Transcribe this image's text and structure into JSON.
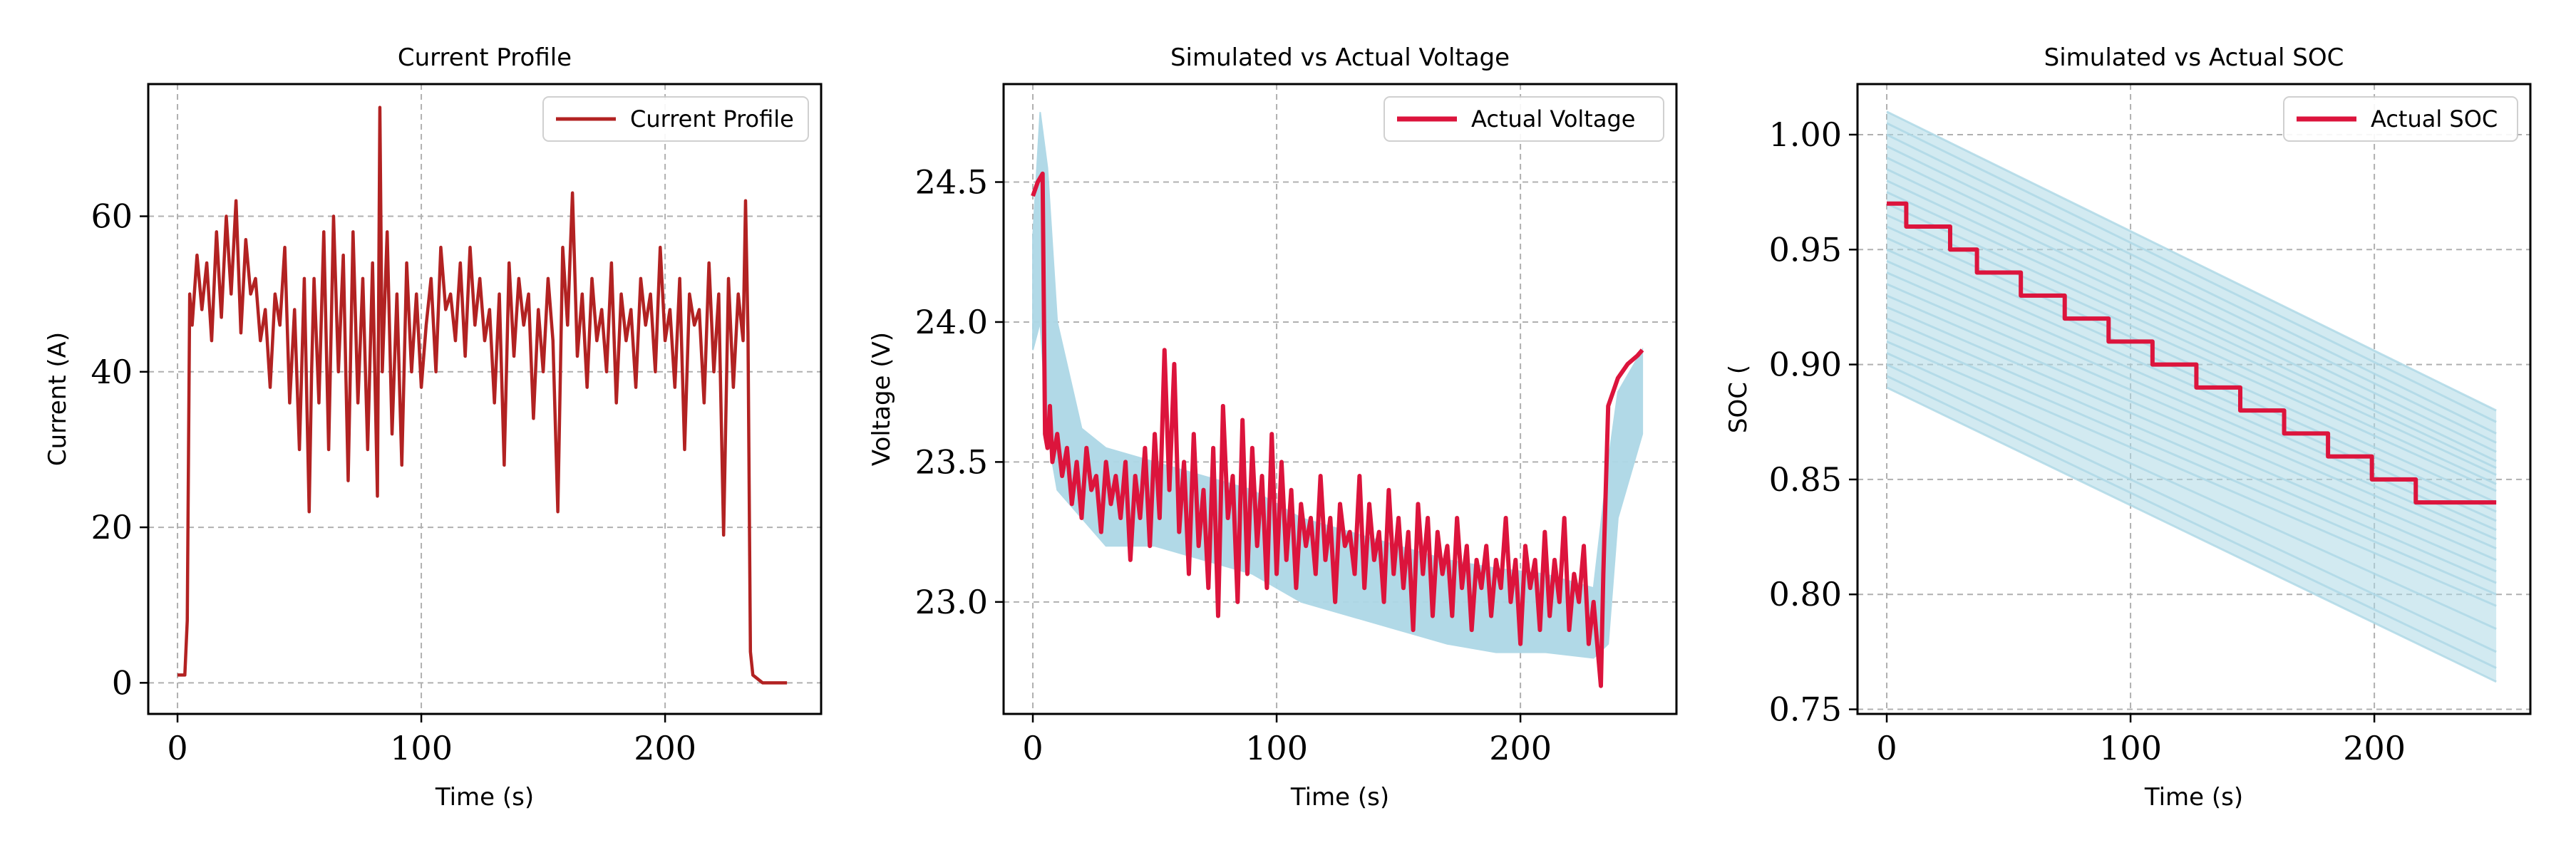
{
  "colors": {
    "current": "#b22222",
    "actual": "#dc143c",
    "simulated": "#add8e6",
    "grid": "#b0b0b0"
  },
  "chart_data": [
    {
      "type": "line",
      "title": "Current Profile",
      "xlabel": "Time (s)",
      "ylabel": "Current (A)",
      "xlim": [
        -12,
        264
      ],
      "ylim": [
        -4,
        77
      ],
      "xticks": [
        0,
        100,
        200
      ],
      "yticks": [
        0,
        20,
        40,
        60
      ],
      "ytick_labels": [
        "0",
        "20",
        "40",
        "60"
      ],
      "grid": true,
      "legend_position": "top-right",
      "series": [
        {
          "name": "Current Profile",
          "color": "#b22222",
          "x": [
            0,
            3,
            4,
            5,
            6,
            8,
            10,
            12,
            14,
            16,
            18,
            20,
            22,
            24,
            26,
            28,
            30,
            32,
            34,
            36,
            38,
            40,
            42,
            44,
            46,
            48,
            50,
            52,
            54,
            55,
            56,
            58,
            60,
            62,
            64,
            66,
            68,
            70,
            72,
            74,
            76,
            78,
            80,
            82,
            83,
            84,
            86,
            88,
            90,
            92,
            94,
            96,
            98,
            100,
            102,
            104,
            106,
            108,
            110,
            112,
            114,
            116,
            118,
            120,
            122,
            124,
            126,
            128,
            130,
            132,
            134,
            136,
            138,
            140,
            142,
            144,
            146,
            148,
            150,
            152,
            154,
            156,
            158,
            160,
            162,
            164,
            166,
            168,
            170,
            172,
            174,
            176,
            178,
            180,
            182,
            184,
            186,
            188,
            190,
            192,
            194,
            196,
            198,
            200,
            202,
            204,
            206,
            208,
            210,
            212,
            214,
            216,
            218,
            220,
            222,
            224,
            226,
            228,
            230,
            232,
            233,
            234,
            235,
            236,
            240,
            250
          ],
          "y": [
            1,
            1,
            8,
            50,
            46,
            55,
            48,
            54,
            44,
            58,
            47,
            60,
            50,
            62,
            45,
            57,
            50,
            52,
            44,
            48,
            38,
            50,
            46,
            56,
            36,
            48,
            30,
            52,
            22,
            40,
            52,
            36,
            58,
            30,
            60,
            40,
            55,
            26,
            58,
            36,
            52,
            30,
            54,
            24,
            74,
            40,
            58,
            32,
            50,
            28,
            54,
            40,
            50,
            38,
            46,
            52,
            40,
            56,
            48,
            50,
            44,
            54,
            42,
            56,
            46,
            52,
            44,
            48,
            36,
            50,
            28,
            54,
            42,
            52,
            46,
            50,
            34,
            48,
            40,
            52,
            44,
            22,
            56,
            46,
            63,
            42,
            50,
            38,
            52,
            44,
            48,
            40,
            54,
            36,
            50,
            44,
            48,
            38,
            52,
            46,
            50,
            40,
            56,
            44,
            48,
            38,
            52,
            30,
            50,
            46,
            48,
            36,
            54,
            40,
            50,
            19,
            52,
            38,
            50,
            44,
            62,
            45,
            4,
            1,
            0,
            0
          ]
        }
      ]
    },
    {
      "type": "line",
      "title": "Simulated vs Actual Voltage",
      "xlabel": "Time (s)",
      "ylabel": "Voltage (V)",
      "xlim": [
        -12,
        264
      ],
      "ylim": [
        22.6,
        24.85
      ],
      "xticks": [
        0,
        100,
        200
      ],
      "yticks": [
        23.0,
        23.5,
        24.0,
        24.5
      ],
      "ytick_labels": [
        "23.0",
        "23.5",
        "24.0",
        "24.5"
      ],
      "grid": true,
      "legend_position": "top-right",
      "band": {
        "color": "#add8e6",
        "x": [
          0,
          3,
          6,
          10,
          20,
          30,
          50,
          70,
          90,
          110,
          130,
          150,
          170,
          190,
          210,
          230,
          236,
          240,
          250
        ],
        "upper": [
          24.3,
          24.75,
          24.55,
          24.0,
          23.62,
          23.55,
          23.5,
          23.45,
          23.4,
          23.3,
          23.25,
          23.2,
          23.15,
          23.12,
          23.1,
          23.05,
          23.5,
          23.75,
          23.9
        ],
        "lower": [
          23.9,
          24.0,
          23.6,
          23.4,
          23.3,
          23.2,
          23.2,
          23.15,
          23.1,
          23.0,
          22.95,
          22.9,
          22.85,
          22.82,
          22.82,
          22.8,
          22.85,
          23.3,
          23.6
        ]
      },
      "series": [
        {
          "name": "Actual Voltage",
          "color": "#dc143c",
          "x": [
            0,
            2,
            4,
            5,
            6,
            7,
            8,
            10,
            12,
            14,
            16,
            18,
            20,
            22,
            24,
            26,
            28,
            30,
            32,
            34,
            36,
            38,
            40,
            42,
            44,
            46,
            48,
            50,
            52,
            54,
            56,
            58,
            60,
            62,
            64,
            66,
            68,
            70,
            72,
            74,
            76,
            78,
            80,
            82,
            84,
            86,
            88,
            90,
            92,
            94,
            96,
            98,
            100,
            102,
            104,
            106,
            108,
            110,
            112,
            114,
            116,
            118,
            120,
            122,
            124,
            126,
            128,
            130,
            132,
            134,
            136,
            138,
            140,
            142,
            144,
            146,
            148,
            150,
            152,
            154,
            156,
            158,
            160,
            162,
            164,
            166,
            168,
            170,
            172,
            174,
            176,
            178,
            180,
            182,
            184,
            186,
            188,
            190,
            192,
            194,
            196,
            198,
            200,
            202,
            204,
            206,
            208,
            210,
            212,
            214,
            216,
            218,
            220,
            222,
            224,
            226,
            228,
            230,
            232,
            233,
            234,
            236,
            238,
            240,
            244,
            248,
            250
          ],
          "y": [
            24.45,
            24.5,
            24.53,
            23.6,
            23.55,
            23.7,
            23.5,
            23.6,
            23.45,
            23.55,
            23.35,
            23.5,
            23.3,
            23.55,
            23.4,
            23.45,
            23.25,
            23.5,
            23.35,
            23.45,
            23.3,
            23.5,
            23.15,
            23.45,
            23.3,
            23.55,
            23.2,
            23.6,
            23.3,
            23.9,
            23.4,
            23.85,
            23.25,
            23.5,
            23.1,
            23.6,
            23.2,
            23.4,
            23.05,
            23.55,
            22.95,
            23.7,
            23.3,
            23.45,
            23.0,
            23.65,
            23.1,
            23.55,
            23.2,
            23.45,
            23.05,
            23.6,
            23.1,
            23.5,
            23.15,
            23.4,
            23.05,
            23.35,
            23.2,
            23.3,
            23.1,
            23.45,
            23.15,
            23.3,
            23.0,
            23.35,
            23.2,
            23.25,
            23.1,
            23.45,
            23.05,
            23.35,
            23.15,
            23.25,
            23.0,
            23.4,
            23.1,
            23.3,
            23.05,
            23.25,
            22.9,
            23.35,
            23.1,
            23.3,
            22.95,
            23.25,
            23.1,
            23.2,
            22.95,
            23.3,
            23.05,
            23.2,
            22.9,
            23.15,
            23.05,
            23.2,
            22.95,
            23.15,
            23.05,
            23.3,
            23.0,
            23.15,
            22.85,
            23.2,
            23.05,
            23.15,
            22.9,
            23.25,
            22.95,
            23.15,
            23.0,
            23.3,
            22.9,
            23.1,
            23.0,
            23.2,
            22.85,
            23.0,
            22.8,
            22.7,
            23.1,
            23.7,
            23.75,
            23.8,
            23.85,
            23.88,
            23.9
          ]
        }
      ]
    },
    {
      "type": "line",
      "title": "Simulated vs Actual SOC",
      "xlabel": "Time (s)",
      "ylabel": "SOC (",
      "xlim": [
        -12,
        264
      ],
      "ylim": [
        0.748,
        1.022
      ],
      "xticks": [
        0,
        100,
        200
      ],
      "yticks": [
        0.75,
        0.8,
        0.85,
        0.9,
        0.95,
        1.0
      ],
      "ytick_labels": [
        "0.75",
        "0.80",
        "0.85",
        "0.90",
        "0.95",
        "1.00"
      ],
      "grid": true,
      "legend_position": "top-right",
      "simulated_lines": {
        "color": "#add8e6",
        "x": [
          0,
          250
        ],
        "starts": [
          1.01,
          1.005,
          1.0,
          0.995,
          0.99,
          0.985,
          0.98,
          0.975,
          0.97,
          0.965,
          0.96,
          0.955,
          0.95,
          0.945,
          0.94,
          0.935,
          0.93,
          0.925,
          0.92,
          0.915,
          0.91,
          0.905,
          0.9,
          0.895,
          0.89
        ],
        "ends": [
          0.88,
          0.875,
          0.87,
          0.866,
          0.862,
          0.858,
          0.855,
          0.852,
          0.848,
          0.845,
          0.84,
          0.836,
          0.832,
          0.828,
          0.824,
          0.82,
          0.815,
          0.81,
          0.805,
          0.8,
          0.795,
          0.785,
          0.775,
          0.768,
          0.762
        ]
      },
      "series": [
        {
          "name": "Actual SOC",
          "color": "#dc143c",
          "x": [
            0,
            8,
            8,
            26,
            26,
            37,
            37,
            55,
            55,
            73,
            73,
            91,
            91,
            109,
            109,
            127,
            127,
            145,
            145,
            163,
            163,
            181,
            181,
            199,
            199,
            217,
            217,
            250
          ],
          "y": [
            0.97,
            0.97,
            0.96,
            0.96,
            0.95,
            0.95,
            0.94,
            0.94,
            0.93,
            0.93,
            0.92,
            0.92,
            0.91,
            0.91,
            0.9,
            0.9,
            0.89,
            0.89,
            0.88,
            0.88,
            0.87,
            0.87,
            0.86,
            0.86,
            0.85,
            0.85,
            0.84,
            0.84
          ]
        }
      ]
    }
  ]
}
